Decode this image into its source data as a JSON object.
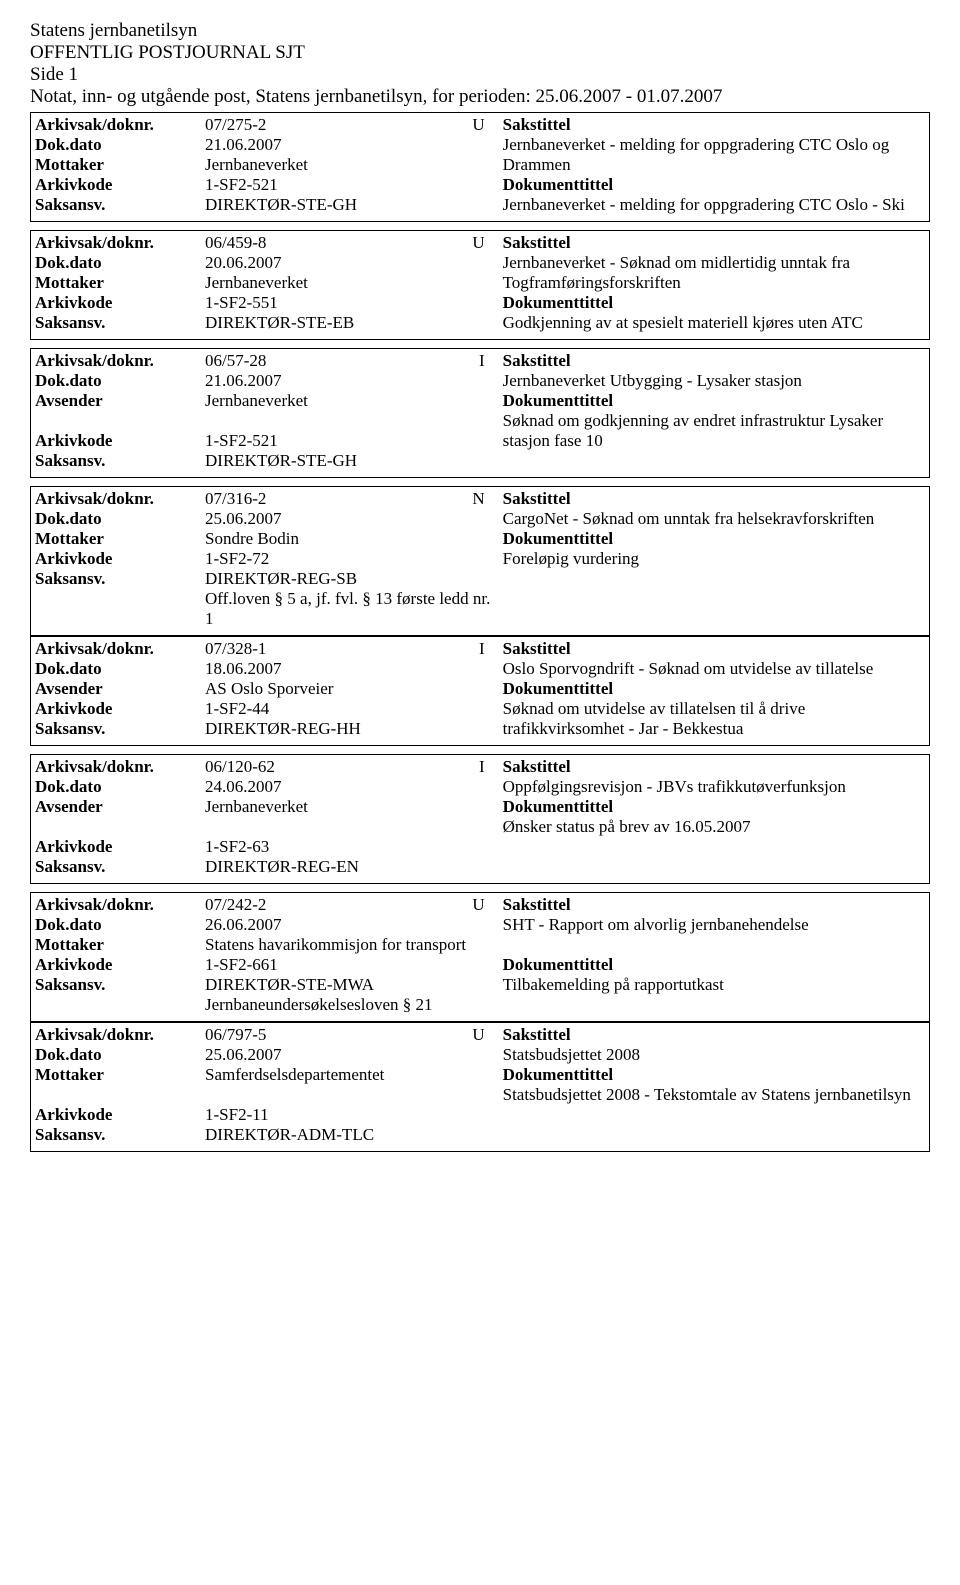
{
  "header": {
    "line1": "Statens jernbanetilsyn",
    "line2": "OFFENTLIG POSTJOURNAL SJT",
    "line3": "Side 1",
    "line4": "Notat, inn- og utgående post, Statens jernbanetilsyn, for perioden: 25.06.2007 - 01.07.2007"
  },
  "labels": {
    "arkivsak": "Arkivsak/doknr.",
    "dokdato": "Dok.dato",
    "mottaker": "Mottaker",
    "avsender": "Avsender",
    "arkivkode": "Arkivkode",
    "saksansv": "Saksansv.",
    "sakstittel": "Sakstittel",
    "dokumenttittel": "Dokumenttittel"
  },
  "entries": [
    {
      "arkivsak": "07/275-2",
      "doctype": "U",
      "dokdato": "21.06.2007",
      "party_label": "Mottaker",
      "party": "Jernbaneverket",
      "arkivkode": "1-SF2-521",
      "saksansv": "DIREKTØR-STE-GH",
      "extra_lines": [],
      "sakstittel": "Jernbaneverket - melding for oppgradering CTC Oslo og Drammen",
      "doktittel": "Jernbaneverket - melding for oppgradering CTC Oslo - Ski",
      "gap_before": false
    },
    {
      "arkivsak": "06/459-8",
      "doctype": "U",
      "dokdato": "20.06.2007",
      "party_label": "Mottaker",
      "party": "Jernbaneverket",
      "arkivkode": "1-SF2-551",
      "saksansv": "DIREKTØR-STE-EB",
      "extra_lines": [],
      "sakstittel": "Jernbaneverket - Søknad om midlertidig unntak fra Togframføringsforskriften",
      "doktittel": "Godkjenning av at spesielt materiell kjøres uten ATC",
      "gap_before": true
    },
    {
      "arkivsak": "06/57-28",
      "doctype": "I",
      "dokdato": "21.06.2007",
      "party_label": "Avsender",
      "party": "Jernbaneverket",
      "arkivkode": "1-SF2-521",
      "saksansv": "DIREKTØR-STE-GH",
      "extra_lines": [],
      "sakstittel": "Jernbaneverket Utbygging - Lysaker stasjon",
      "doktittel": "Søknad om godkjenning av endret infrastruktur Lysaker stasjon fase 10",
      "gap_before": true,
      "blank_after_party": true
    },
    {
      "arkivsak": "07/316-2",
      "doctype": "N",
      "dokdato": "25.06.2007",
      "party_label": "Mottaker",
      "party": "Sondre Bodin",
      "arkivkode": "1-SF2-72",
      "saksansv": "DIREKTØR-REG-SB",
      "extra_lines": [
        "Off.loven § 5 a, jf. fvl. § 13 første ledd nr. 1"
      ],
      "sakstittel": "CargoNet - Søknad om unntak fra helsekravforskriften",
      "doktittel": "Foreløpig vurdering",
      "gap_before": true
    },
    {
      "arkivsak": "07/328-1",
      "doctype": "I",
      "dokdato": "18.06.2007",
      "party_label": "Avsender",
      "party": "AS Oslo Sporveier",
      "arkivkode": "1-SF2-44",
      "saksansv": "DIREKTØR-REG-HH",
      "extra_lines": [],
      "sakstittel": "Oslo Sporvogndrift - Søknad om utvidelse av tillatelse",
      "doktittel": "Søknad om utvidelse av tillatelsen til å drive trafikkvirksomhet - Jar - Bekkestua",
      "gap_before": false
    },
    {
      "arkivsak": "06/120-62",
      "doctype": "I",
      "dokdato": "24.06.2007",
      "party_label": "Avsender",
      "party": "Jernbaneverket",
      "arkivkode": "1-SF2-63",
      "saksansv": "DIREKTØR-REG-EN",
      "extra_lines": [],
      "sakstittel": "Oppfølgingsrevisjon - JBVs trafikkutøverfunksjon",
      "doktittel": "Ønsker status på brev av 16.05.2007",
      "gap_before": true,
      "blank_after_party": true
    },
    {
      "arkivsak": "07/242-2",
      "doctype": "U",
      "dokdato": "26.06.2007",
      "party_label": "Mottaker",
      "party": "Statens havarikommisjon for transport",
      "arkivkode": "1-SF2-661",
      "saksansv": "DIREKTØR-STE-MWA",
      "extra_lines": [
        "Jernbaneundersøkelsesloven § 21"
      ],
      "sakstittel": "SHT - Rapport om alvorlig jernbanehendelse",
      "doktittel": "Tilbakemelding på rapportutkast",
      "gap_before": true,
      "blank_before_doktittel": true
    },
    {
      "arkivsak": "06/797-5",
      "doctype": "U",
      "dokdato": "25.06.2007",
      "party_label": "Mottaker",
      "party": "Samferdselsdepartementet",
      "arkivkode": "1-SF2-11",
      "saksansv": "DIREKTØR-ADM-TLC",
      "extra_lines": [],
      "sakstittel": "Statsbudsjettet 2008",
      "doktittel": "Statsbudsjettet 2008 - Tekstomtale av Statens jernbanetilsyn",
      "gap_before": false,
      "blank_after_party": true
    }
  ]
}
